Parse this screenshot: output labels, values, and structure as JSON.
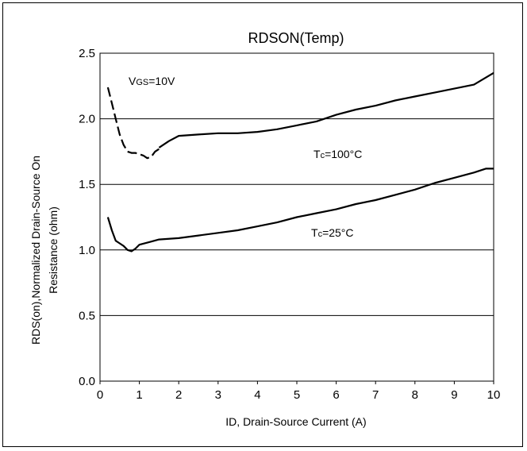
{
  "chart_data": {
    "type": "line",
    "title": "RDSON(Temp)",
    "xlabel": "ID, Drain-Source Current (A)",
    "ylabel_line1": "RDS(on),Normalized Drain-Source On",
    "ylabel_line2": "Resistance (ohm)",
    "xlim": [
      0,
      10
    ],
    "ylim": [
      0.0,
      2.5
    ],
    "x_ticks": [
      "0",
      "1",
      "2",
      "3",
      "4",
      "5",
      "6",
      "7",
      "8",
      "9",
      "10"
    ],
    "y_ticks": [
      "0.0",
      "0.5",
      "1.0",
      "1.5",
      "2.0",
      "2.5"
    ],
    "grid": true,
    "annotations": {
      "vgs_prefix": "V",
      "vgs_sub": "GS",
      "vgs_value": "=10V",
      "tc100_prefix": "T",
      "tc100_sub": "c",
      "tc100_value": "=100°C",
      "tc25_prefix": "T",
      "tc25_sub": "c",
      "tc25_value": "=25°C"
    },
    "series": [
      {
        "style": "dashed",
        "x": [
          0.2,
          0.3,
          0.4,
          0.5,
          0.6,
          0.7,
          0.8,
          0.9,
          1.0,
          1.1,
          1.2,
          1.3,
          1.4,
          1.5
        ],
        "y": [
          2.24,
          2.12,
          2.0,
          1.88,
          1.8,
          1.75,
          1.74,
          1.74,
          1.73,
          1.72,
          1.7,
          1.71,
          1.75,
          1.77
        ]
      },
      {
        "style": "solid",
        "x": [
          1.5,
          1.75,
          2.0,
          2.5,
          3.0,
          3.5,
          4.0,
          4.5,
          5.0,
          5.5,
          6.0,
          6.5,
          7.0,
          7.5,
          8.0,
          8.5,
          9.0,
          9.5,
          10.0
        ],
        "y": [
          1.78,
          1.83,
          1.87,
          1.88,
          1.89,
          1.89,
          1.9,
          1.92,
          1.95,
          1.98,
          2.03,
          2.07,
          2.1,
          2.14,
          2.17,
          2.2,
          2.23,
          2.26,
          2.35
        ]
      },
      {
        "style": "solid",
        "x": [
          0.2,
          0.3,
          0.4,
          0.5,
          0.6,
          0.7,
          0.8,
          0.9,
          1.0,
          1.25,
          1.5,
          2.0,
          2.5,
          3.0,
          3.5,
          4.0,
          4.5,
          5.0,
          5.5,
          6.0,
          6.5,
          7.0,
          7.5,
          8.0,
          8.5,
          9.0,
          9.5,
          9.8,
          10.0
        ],
        "y": [
          1.25,
          1.15,
          1.07,
          1.05,
          1.03,
          1.0,
          0.99,
          1.01,
          1.04,
          1.06,
          1.08,
          1.09,
          1.11,
          1.13,
          1.15,
          1.18,
          1.21,
          1.25,
          1.28,
          1.31,
          1.35,
          1.38,
          1.42,
          1.46,
          1.51,
          1.55,
          1.59,
          1.62,
          1.62
        ]
      }
    ]
  }
}
